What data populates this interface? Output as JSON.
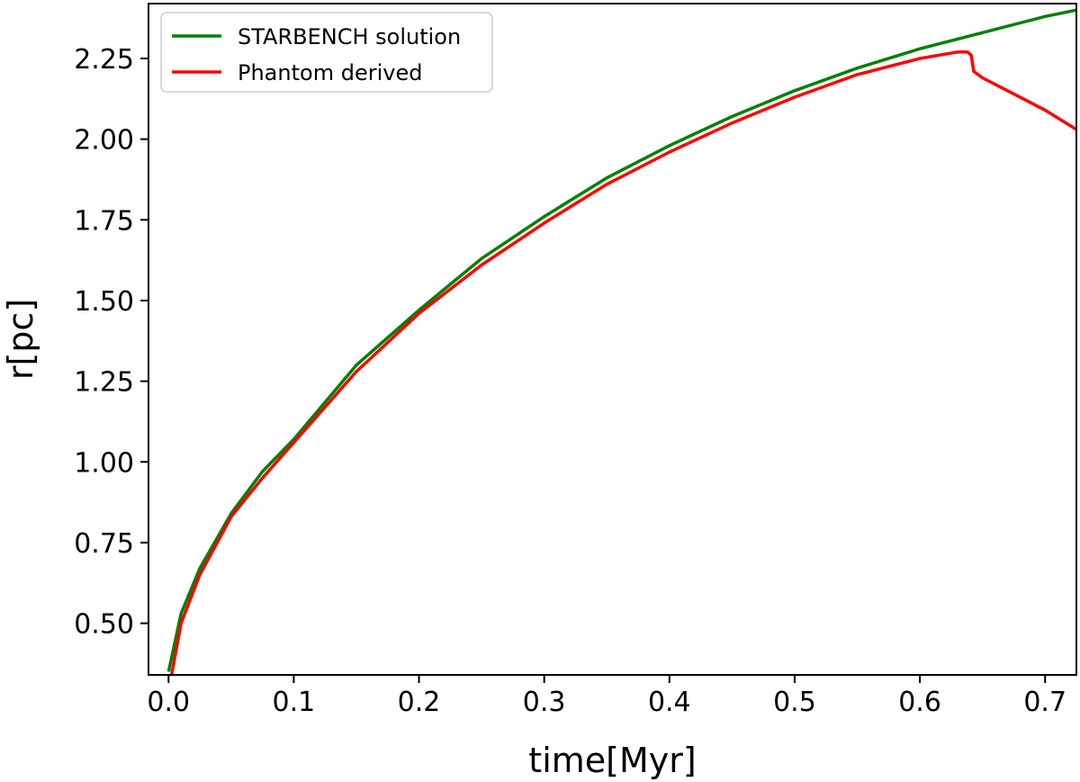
{
  "chart_data": {
    "type": "line",
    "title": "",
    "xlabel": "time[Myr]",
    "ylabel": "r[pc]",
    "xlim": [
      -0.016,
      0.725
    ],
    "ylim": [
      0.34,
      2.42
    ],
    "xticks": [
      0.0,
      0.1,
      0.2,
      0.3,
      0.4,
      0.5,
      0.6,
      0.7
    ],
    "xtick_labels": [
      "0.0",
      "0.1",
      "0.2",
      "0.3",
      "0.4",
      "0.5",
      "0.6",
      "0.7"
    ],
    "yticks": [
      0.5,
      0.75,
      1.0,
      1.25,
      1.5,
      1.75,
      2.0,
      2.25
    ],
    "ytick_labels": [
      "0.50",
      "0.75",
      "1.00",
      "1.25",
      "1.50",
      "1.75",
      "2.00",
      "2.25"
    ],
    "grid": false,
    "legend_position": "top-left",
    "series": [
      {
        "name": "STARBENCH solution",
        "color": "#008000",
        "x": [
          0.0,
          0.01,
          0.025,
          0.05,
          0.075,
          0.1,
          0.15,
          0.2,
          0.25,
          0.3,
          0.35,
          0.4,
          0.45,
          0.5,
          0.55,
          0.6,
          0.65,
          0.7,
          0.725
        ],
        "y": [
          0.35,
          0.53,
          0.67,
          0.84,
          0.97,
          1.07,
          1.3,
          1.47,
          1.63,
          1.76,
          1.88,
          1.98,
          2.07,
          2.15,
          2.22,
          2.28,
          2.33,
          2.38,
          2.4
        ]
      },
      {
        "name": "Phantom derived",
        "color": "#ff0000",
        "x": [
          0.002,
          0.01,
          0.025,
          0.05,
          0.075,
          0.1,
          0.15,
          0.2,
          0.25,
          0.3,
          0.35,
          0.4,
          0.45,
          0.5,
          0.55,
          0.6,
          0.63,
          0.638,
          0.641,
          0.643,
          0.65,
          0.7,
          0.725
        ],
        "y": [
          0.33,
          0.5,
          0.65,
          0.83,
          0.95,
          1.06,
          1.28,
          1.46,
          1.61,
          1.74,
          1.86,
          1.96,
          2.05,
          2.13,
          2.2,
          2.25,
          2.27,
          2.27,
          2.26,
          2.21,
          2.19,
          2.09,
          2.03
        ]
      }
    ]
  }
}
